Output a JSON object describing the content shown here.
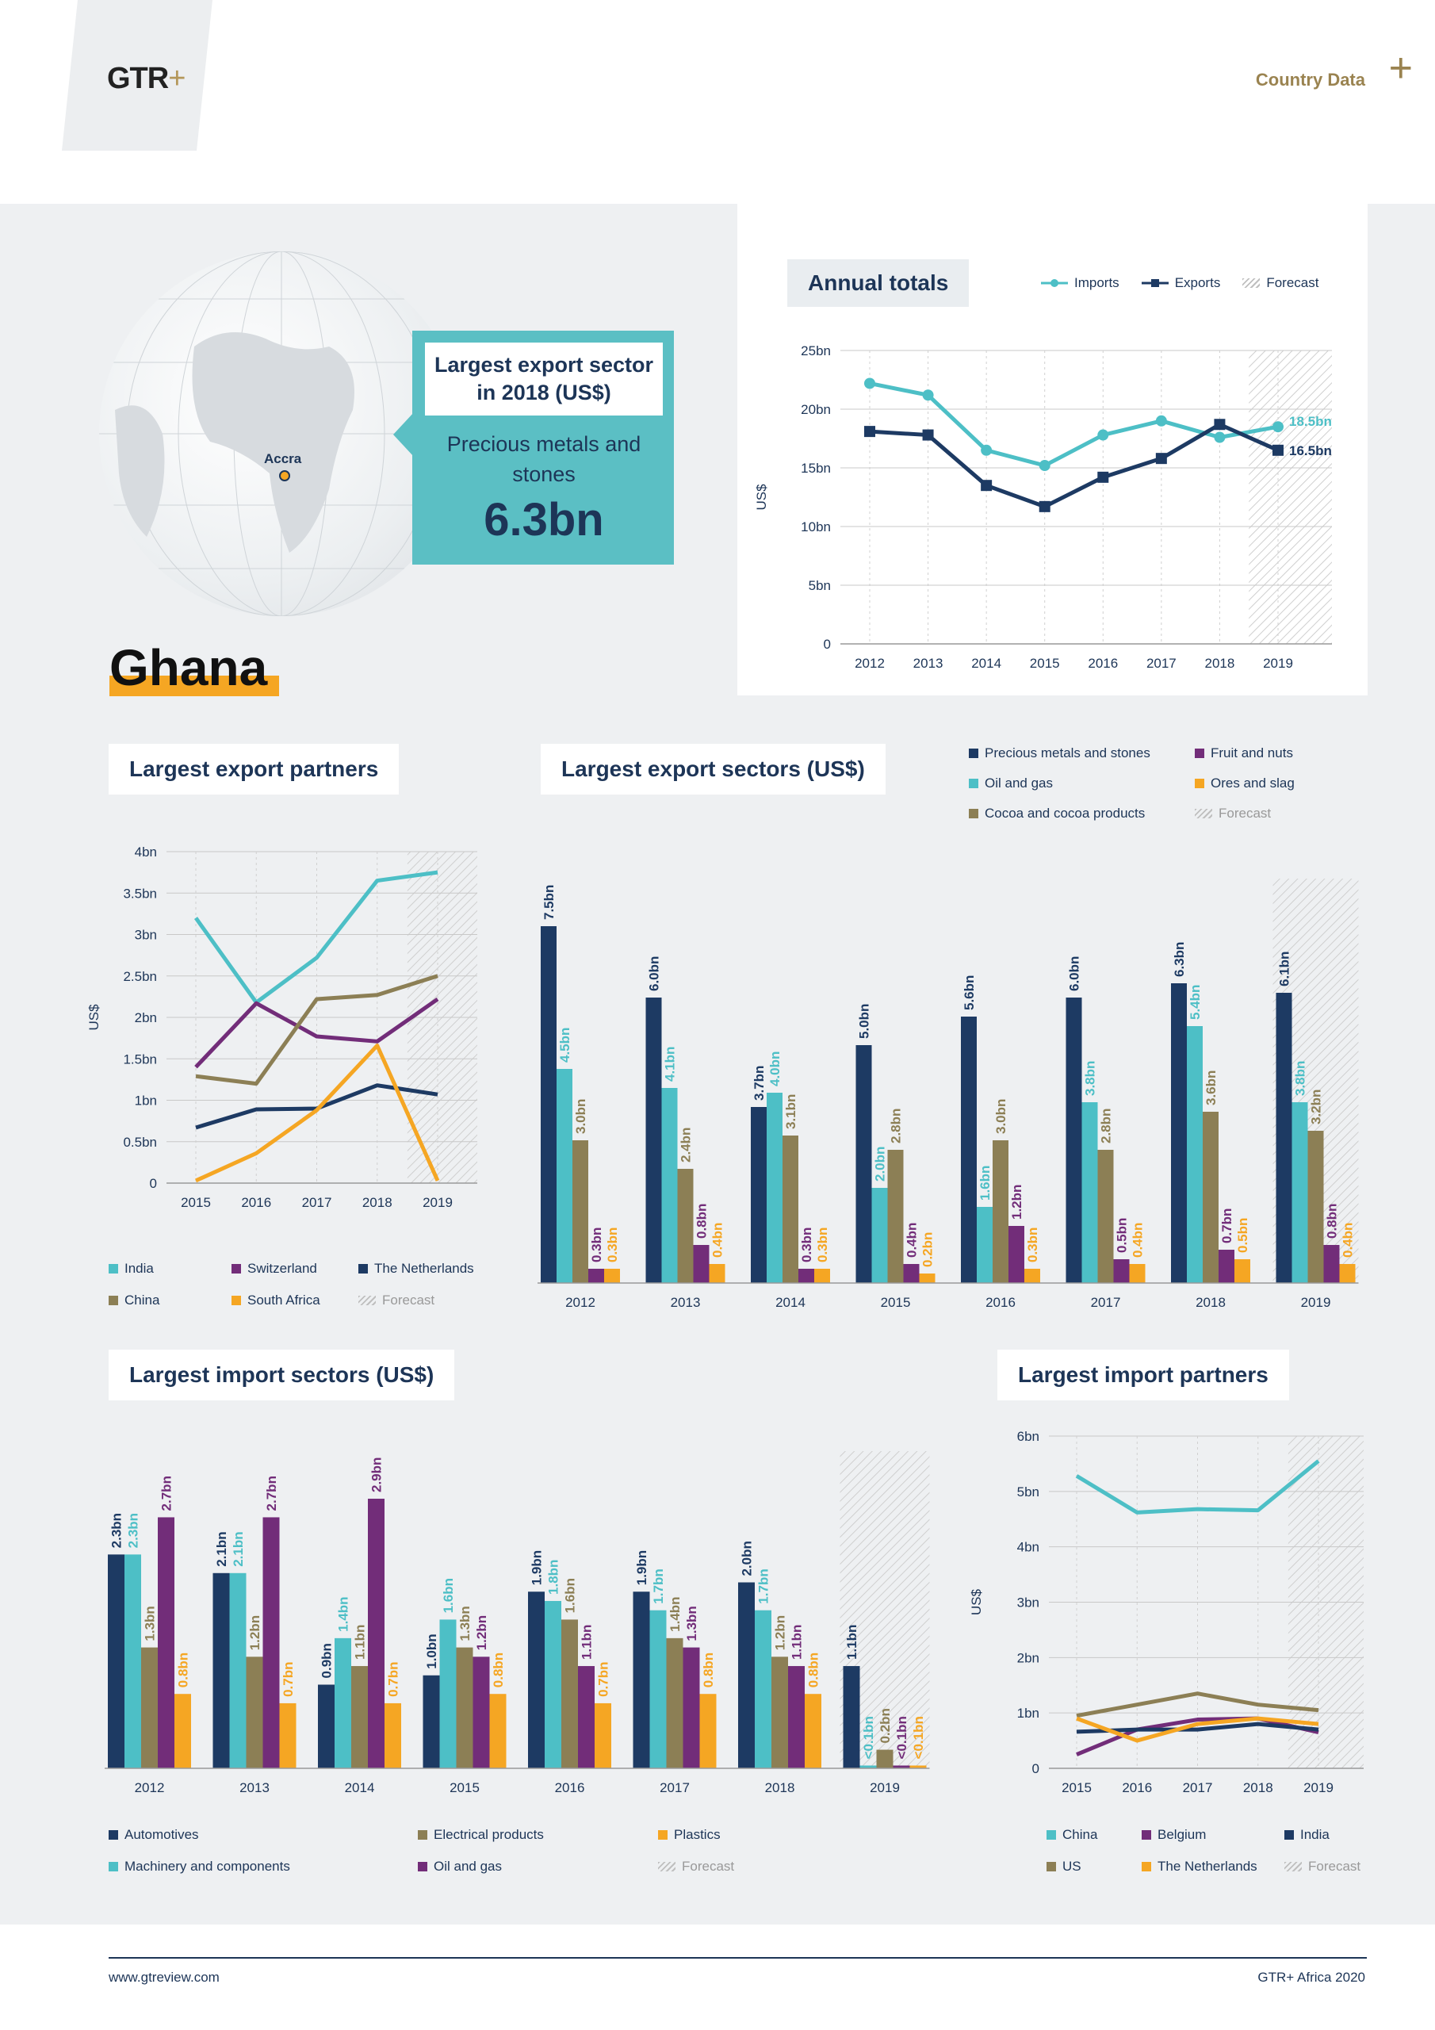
{
  "header": {
    "logo": "GTR",
    "logo_plus": "+",
    "section": "Country Data",
    "section_plus": "+"
  },
  "map": {
    "city": "Accra"
  },
  "callout": {
    "title": "Largest export sector in 2018 (US$)",
    "sector": "Precious metals and stones",
    "value": "6.3bn"
  },
  "country": "Ghana",
  "colors": {
    "navy": "#1d3a63",
    "teal": "#4dbfc6",
    "olive": "#8c7f55",
    "purple": "#722d79",
    "orange": "#f5a623"
  },
  "forecast_label": "Forecast",
  "chart_data": [
    {
      "id": "annual",
      "type": "line",
      "title": "Annual totals",
      "ylabel": "US$",
      "x": [
        "2012",
        "2013",
        "2014",
        "2015",
        "2016",
        "2017",
        "2018",
        "2019"
      ],
      "yticks": [
        "0",
        "5bn",
        "10bn",
        "15bn",
        "20bn",
        "25bn"
      ],
      "ylim": [
        0,
        25
      ],
      "forecast": "2019",
      "series": [
        {
          "name": "Imports",
          "values": [
            22.2,
            21.2,
            16.5,
            15.2,
            17.8,
            19.0,
            17.6,
            18.5
          ],
          "color": "#4dbfc6"
        },
        {
          "name": "Exports",
          "values": [
            18.1,
            17.8,
            13.5,
            11.7,
            14.2,
            15.8,
            18.7,
            16.5
          ],
          "color": "#1d3a63"
        }
      ],
      "end_labels": [
        "18.5bn",
        "16.5bn"
      ]
    },
    {
      "id": "export_partners",
      "type": "line",
      "title": "Largest export partners",
      "ylabel": "US$",
      "x": [
        "2015",
        "2016",
        "2017",
        "2018",
        "2019"
      ],
      "yticks": [
        "0",
        "0.5bn",
        "1bn",
        "1.5bn",
        "2bn",
        "2.5bn",
        "3bn",
        "3.5bn",
        "4bn"
      ],
      "ylim": [
        0,
        4
      ],
      "forecast": "2019",
      "series": [
        {
          "name": "India",
          "values": [
            3.2,
            2.18,
            2.72,
            3.65,
            3.75
          ],
          "color": "#4dbfc6"
        },
        {
          "name": "Switzerland",
          "values": [
            1.4,
            2.17,
            1.77,
            1.71,
            2.22
          ],
          "color": "#722d79"
        },
        {
          "name": "The Netherlands",
          "values": [
            0.67,
            0.89,
            0.9,
            1.18,
            1.07
          ],
          "color": "#1d3a63"
        },
        {
          "name": "China",
          "values": [
            1.29,
            1.2,
            2.22,
            2.27,
            2.5
          ],
          "color": "#8c7f55"
        },
        {
          "name": "South Africa",
          "values": [
            0.03,
            0.36,
            0.88,
            1.66,
            0.03
          ],
          "color": "#f5a623"
        }
      ]
    },
    {
      "id": "export_sectors",
      "type": "bar",
      "title": "Largest export sectors (US$)",
      "categories": [
        "2012",
        "2013",
        "2014",
        "2015",
        "2016",
        "2017",
        "2018",
        "2019"
      ],
      "ylim": [
        0,
        7.5
      ],
      "forecast": "2019",
      "series": [
        {
          "name": "Precious metals and stones",
          "color": "#1d3a63",
          "values": [
            7.5,
            6.0,
            3.7,
            5.0,
            5.6,
            6.0,
            6.3,
            6.1
          ],
          "labels": [
            "7.5bn",
            "6.0bn",
            "3.7bn",
            "5.0bn",
            "5.6bn",
            "6.0bn",
            "6.3bn",
            "6.1bn"
          ]
        },
        {
          "name": "Oil and gas",
          "color": "#4dbfc6",
          "values": [
            4.5,
            4.1,
            4.0,
            2.0,
            1.6,
            3.8,
            5.4,
            3.8
          ],
          "labels": [
            "4.5bn",
            "4.1bn",
            "4.0bn",
            "2.0bn",
            "1.6bn",
            "3.8bn",
            "5.4bn",
            "3.8bn"
          ]
        },
        {
          "name": "Cocoa and cocoa products",
          "color": "#8c7f55",
          "values": [
            3.0,
            2.4,
            3.1,
            2.8,
            3.0,
            2.8,
            3.6,
            3.2
          ],
          "labels": [
            "3.0bn",
            "2.4bn",
            "3.1bn",
            "2.8bn",
            "3.0bn",
            "2.8bn",
            "3.6bn",
            "3.2bn"
          ]
        },
        {
          "name": "Fruit and nuts",
          "color": "#722d79",
          "values": [
            0.3,
            0.8,
            0.3,
            0.4,
            1.2,
            0.5,
            0.7,
            0.8
          ],
          "labels": [
            "0.3bn",
            "0.8bn",
            "0.3bn",
            "0.4bn",
            "1.2bn",
            "0.5bn",
            "0.7bn",
            "0.8bn"
          ]
        },
        {
          "name": "Ores and slag",
          "color": "#f5a623",
          "values": [
            0.3,
            0.4,
            0.3,
            0.2,
            0.3,
            0.4,
            0.5,
            0.4
          ],
          "labels": [
            "0.3bn",
            "0.4bn",
            "0.3bn",
            "0.2bn",
            "0.3bn",
            "0.4bn",
            "0.5bn",
            "0.4bn"
          ]
        }
      ]
    },
    {
      "id": "import_sectors",
      "type": "bar",
      "title": "Largest import sectors (US$)",
      "categories": [
        "2012",
        "2013",
        "2014",
        "2015",
        "2016",
        "2017",
        "2018",
        "2019"
      ],
      "ylim": [
        0,
        2.9
      ],
      "forecast": "2019",
      "series": [
        {
          "name": "Automotives",
          "color": "#1d3a63",
          "values": [
            2.3,
            2.1,
            0.9,
            1.0,
            1.9,
            1.9,
            2.0,
            1.1
          ],
          "labels": [
            "2.3bn",
            "2.1bn",
            "0.9bn",
            "1.0bn",
            "1.9bn",
            "1.9bn",
            "2.0bn",
            "1.1bn"
          ]
        },
        {
          "name": "Machinery and components",
          "color": "#4dbfc6",
          "values": [
            2.3,
            2.1,
            1.4,
            1.6,
            1.8,
            1.7,
            1.7,
            0.03
          ],
          "labels": [
            "2.3bn",
            "2.1bn",
            "1.4bn",
            "1.6bn",
            "1.8bn",
            "1.7bn",
            "1.7bn",
            "<0.1bn"
          ]
        },
        {
          "name": "Electrical products",
          "color": "#8c7f55",
          "values": [
            1.3,
            1.2,
            1.1,
            1.3,
            1.6,
            1.4,
            1.2,
            0.2
          ],
          "labels": [
            "1.3bn",
            "1.2bn",
            "1.1bn",
            "1.3bn",
            "1.6bn",
            "1.4bn",
            "1.2bn",
            "0.2bn"
          ]
        },
        {
          "name": "Oil and gas",
          "color": "#722d79",
          "values": [
            2.7,
            2.7,
            2.9,
            1.2,
            1.1,
            1.3,
            1.1,
            0.03
          ],
          "labels": [
            "2.7bn",
            "2.7bn",
            "2.9bn",
            "1.2bn",
            "1.1bn",
            "1.3bn",
            "1.1bn",
            "<0.1bn"
          ]
        },
        {
          "name": "Plastics",
          "color": "#f5a623",
          "values": [
            0.8,
            0.7,
            0.7,
            0.8,
            0.7,
            0.8,
            0.8,
            0.03
          ],
          "labels": [
            "0.8bn",
            "0.7bn",
            "0.7bn",
            "0.8bn",
            "0.7bn",
            "0.8bn",
            "0.8bn",
            "<0.1bn"
          ]
        }
      ]
    },
    {
      "id": "import_partners",
      "type": "line",
      "title": "Largest import partners",
      "ylabel": "US$",
      "x": [
        "2015",
        "2016",
        "2017",
        "2018",
        "2019"
      ],
      "yticks": [
        "0",
        "1bn",
        "2bn",
        "3bn",
        "4bn",
        "5bn",
        "6bn"
      ],
      "ylim": [
        0,
        6
      ],
      "forecast": "2019",
      "series": [
        {
          "name": "China",
          "values": [
            5.28,
            4.62,
            4.68,
            4.66,
            5.55
          ],
          "color": "#4dbfc6"
        },
        {
          "name": "Belgium",
          "values": [
            0.25,
            0.7,
            0.88,
            0.9,
            0.65
          ],
          "color": "#722d79"
        },
        {
          "name": "India",
          "values": [
            0.66,
            0.7,
            0.7,
            0.8,
            0.7
          ],
          "color": "#1d3a63"
        },
        {
          "name": "US",
          "values": [
            0.95,
            1.15,
            1.35,
            1.15,
            1.05
          ],
          "color": "#8c7f55"
        },
        {
          "name": "The Netherlands",
          "values": [
            0.9,
            0.5,
            0.8,
            0.9,
            0.8
          ],
          "color": "#f5a623"
        }
      ]
    }
  ],
  "footer": {
    "url": "www.gtreview.com",
    "publication": "GTR+ Africa 2020"
  }
}
